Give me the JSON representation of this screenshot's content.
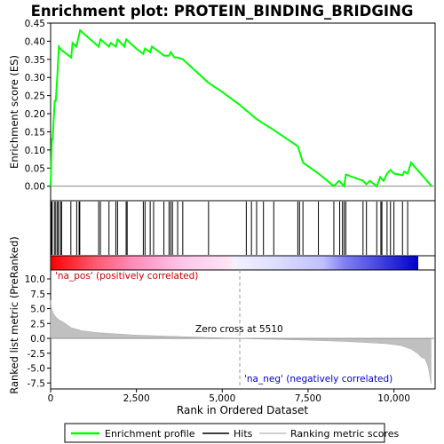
{
  "chart_data": {
    "type": "line",
    "title": "Enrichment plot: PROTEIN_BINDING_BRIDGING",
    "xlabel": "Rank in Ordered Dataset",
    "es_panel": {
      "ylabel": "Enrichment score (ES)",
      "ylim": [
        -0.04,
        0.45
      ],
      "yticks": [
        "0.00",
        "0.05",
        "0.10",
        "0.15",
        "0.20",
        "0.25",
        "0.30",
        "0.35",
        "0.40",
        "0.45"
      ],
      "ytick_values": [
        0,
        0.05,
        0.1,
        0.15,
        0.2,
        0.25,
        0.3,
        0.35,
        0.4,
        0.45
      ],
      "series": [
        {
          "name": "Enrichment profile",
          "color": "#00ff00",
          "x": [
            0,
            40,
            60,
            120,
            150,
            200,
            240,
            320,
            600,
            640,
            750,
            800,
            860,
            1400,
            1450,
            1700,
            1750,
            1900,
            1950,
            2150,
            2200,
            2550,
            2700,
            2750,
            2900,
            2950,
            3100,
            3300,
            3450,
            3500,
            3600,
            3700,
            3850,
            4600,
            5000,
            5500,
            6000,
            6500,
            7200,
            7350,
            7800,
            8250,
            8400,
            8550,
            8600,
            9100,
            9200,
            9300,
            9500,
            9600,
            9700,
            9800,
            9900,
            10000,
            10250,
            10300,
            10400,
            10500,
            11100
          ],
          "y": [
            0.0,
            0.13,
            0.13,
            0.235,
            0.235,
            0.31,
            0.385,
            0.375,
            0.355,
            0.395,
            0.385,
            0.405,
            0.43,
            0.385,
            0.405,
            0.385,
            0.395,
            0.385,
            0.405,
            0.385,
            0.405,
            0.375,
            0.365,
            0.38,
            0.37,
            0.385,
            0.375,
            0.36,
            0.36,
            0.37,
            0.355,
            0.355,
            0.35,
            0.285,
            0.26,
            0.225,
            0.185,
            0.155,
            0.11,
            0.065,
            0.035,
            0.0,
            0.015,
            0.0,
            0.032,
            0.015,
            0.005,
            0.015,
            0.0,
            0.025,
            0.015,
            0.035,
            0.045,
            0.035,
            0.03,
            0.04,
            0.035,
            0.065,
            0.0
          ]
        }
      ]
    },
    "hits": [
      5,
      25,
      45,
      110,
      150,
      200,
      230,
      290,
      320,
      590,
      760,
      830,
      850,
      1400,
      1450,
      1700,
      1900,
      1950,
      2200,
      2230,
      2700,
      2750,
      2900,
      3000,
      3300,
      3450,
      3500,
      3550,
      3700,
      3850,
      4600,
      5700,
      5850,
      6000,
      6200,
      6500,
      7200,
      7250,
      7350,
      7800,
      8250,
      8420,
      8500,
      8550,
      8600,
      9100,
      9200,
      9500,
      9620,
      9650,
      9800,
      9900,
      10000,
      10250,
      10400
    ],
    "rank_metric": {
      "ylabel": "Ranked list metric (PreRanked)",
      "ylim": [
        -8.5,
        11.5
      ],
      "yticks": [
        "10.0",
        "7.5",
        "5.0",
        "2.5",
        "0.0",
        "-2.5",
        "-5.0",
        "-7.5"
      ],
      "ytick_values": [
        10,
        7.5,
        5,
        2.5,
        0,
        -2.5,
        -5,
        -7.5
      ],
      "x": [
        0,
        30,
        80,
        150,
        250,
        400,
        600,
        900,
        1300,
        1800,
        2500,
        3500,
        4500,
        5510,
        6500,
        7500,
        8500,
        9200,
        9800,
        10200,
        10500,
        10700,
        10800,
        10900,
        11000,
        11080
      ],
      "values": [
        6.4,
        5.0,
        4.2,
        3.6,
        3.1,
        2.6,
        1.8,
        1.3,
        1.0,
        0.8,
        0.55,
        0.35,
        0.15,
        0.0,
        -0.15,
        -0.3,
        -0.5,
        -0.7,
        -0.9,
        -1.2,
        -1.8,
        -2.6,
        -3.2,
        -3.4,
        -4.8,
        -7.6
      ],
      "zero_cross_label": "Zero cross at 5510",
      "zero_cross": 5510,
      "pos_label": "'na_pos' (positively correlated)",
      "neg_label": "'na_neg' (negatively correlated)"
    },
    "xlim": [
      0,
      11200
    ],
    "xticks": [
      "0",
      "2,500",
      "5,000",
      "7,500",
      "10,000"
    ],
    "xtick_values": [
      0,
      2500,
      5000,
      7500,
      10000
    ],
    "legend": [
      {
        "label": "Enrichment profile",
        "color": "#00ff00"
      },
      {
        "label": "Hits",
        "color": "#000000"
      },
      {
        "label": "Ranking metric scores",
        "color": "#c0c0c0"
      }
    ],
    "colors": {
      "profile": "#00ff00",
      "pos_text": "#cc0000",
      "neg_text": "#0000cc",
      "metric_fill": "#c0c0c0",
      "zero_line": "#a0a0a0"
    }
  }
}
